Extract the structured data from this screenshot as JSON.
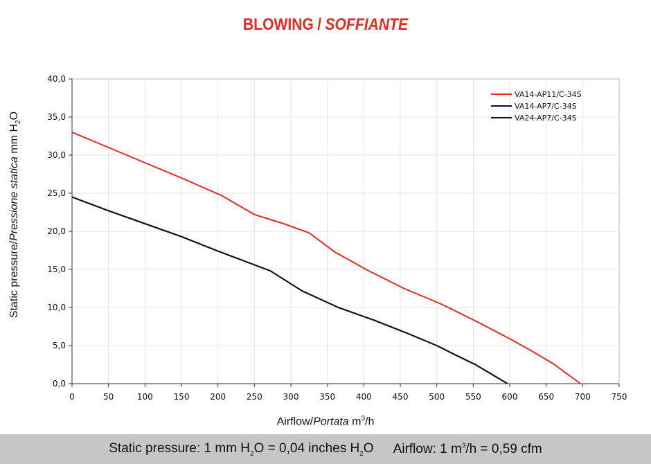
{
  "title": {
    "main": "BLOWING",
    "slash": "/",
    "italic": "SOFFIANTE",
    "color": "#e32b1e"
  },
  "y_axis_label": {
    "main": "Static pressure",
    "slash": "/",
    "italic": "Pressione statica",
    "unit_prefix": "mm",
    "unit_h": "H",
    "unit_sub": "2",
    "unit_o": "O"
  },
  "x_axis_label": {
    "main": "Airflow",
    "slash": "/",
    "italic": "Portata",
    "unit_prefix": "m",
    "unit_sup": "3",
    "unit_suffix": "/h"
  },
  "footer": {
    "pressure_text": "Static pressure: 1 mm H",
    "pressure_sub": "2",
    "pressure_mid": "O = 0,04 inches H",
    "pressure_sub2": "2",
    "pressure_end": "O",
    "airflow_text": "Airflow: 1 m",
    "airflow_sup": "3",
    "airflow_end": "/h = 0,59 cfm"
  },
  "chart_data": {
    "type": "line",
    "xlim": [
      0,
      750
    ],
    "ylim": [
      0,
      40
    ],
    "x_ticks": [
      "0",
      "50",
      "100",
      "150",
      "200",
      "250",
      "300",
      "350",
      "400",
      "450",
      "500",
      "550",
      "600",
      "650",
      "700",
      "750"
    ],
    "y_ticks": [
      "0,0",
      "5,0",
      "10,0",
      "15,0",
      "20,0",
      "25,0",
      "30,0",
      "35,0",
      "40,0"
    ],
    "grid": true,
    "legend_position": "top-right",
    "series": [
      {
        "name": "VA14-AP11/C-34S",
        "color": "#e32b1e",
        "points": [
          [
            0,
            33.0
          ],
          [
            50,
            31.0
          ],
          [
            100,
            29.0
          ],
          [
            150,
            27.0
          ],
          [
            205,
            24.7
          ],
          [
            250,
            22.2
          ],
          [
            290,
            21.0
          ],
          [
            325,
            19.8
          ],
          [
            360,
            17.3
          ],
          [
            405,
            14.9
          ],
          [
            455,
            12.5
          ],
          [
            505,
            10.5
          ],
          [
            520,
            9.8
          ],
          [
            560,
            7.9
          ],
          [
            600,
            5.9
          ],
          [
            630,
            4.3
          ],
          [
            660,
            2.6
          ],
          [
            697,
            0.0
          ]
        ]
      },
      {
        "name": "VA14-AP7/C-34S",
        "color": "#111111",
        "points": [
          [
            0,
            24.5
          ],
          [
            50,
            22.7
          ],
          [
            100,
            21.0
          ],
          [
            150,
            19.3
          ],
          [
            200,
            17.4
          ],
          [
            250,
            15.6
          ],
          [
            272,
            14.8
          ],
          [
            315,
            12.2
          ],
          [
            365,
            10.0
          ],
          [
            415,
            8.3
          ],
          [
            460,
            6.6
          ],
          [
            500,
            5.0
          ],
          [
            525,
            3.8
          ],
          [
            553,
            2.5
          ],
          [
            597,
            0.0
          ]
        ]
      },
      {
        "name": "VA24-AP7/C-34S",
        "color": "#111111",
        "points": [
          [
            0,
            24.5
          ],
          [
            50,
            22.7
          ],
          [
            100,
            21.0
          ],
          [
            150,
            19.3
          ],
          [
            200,
            17.4
          ],
          [
            250,
            15.6
          ],
          [
            272,
            14.8
          ],
          [
            315,
            12.2
          ],
          [
            365,
            10.0
          ],
          [
            415,
            8.3
          ],
          [
            460,
            6.6
          ],
          [
            500,
            5.0
          ],
          [
            525,
            3.8
          ],
          [
            553,
            2.5
          ],
          [
            597,
            0.0
          ]
        ]
      }
    ]
  }
}
